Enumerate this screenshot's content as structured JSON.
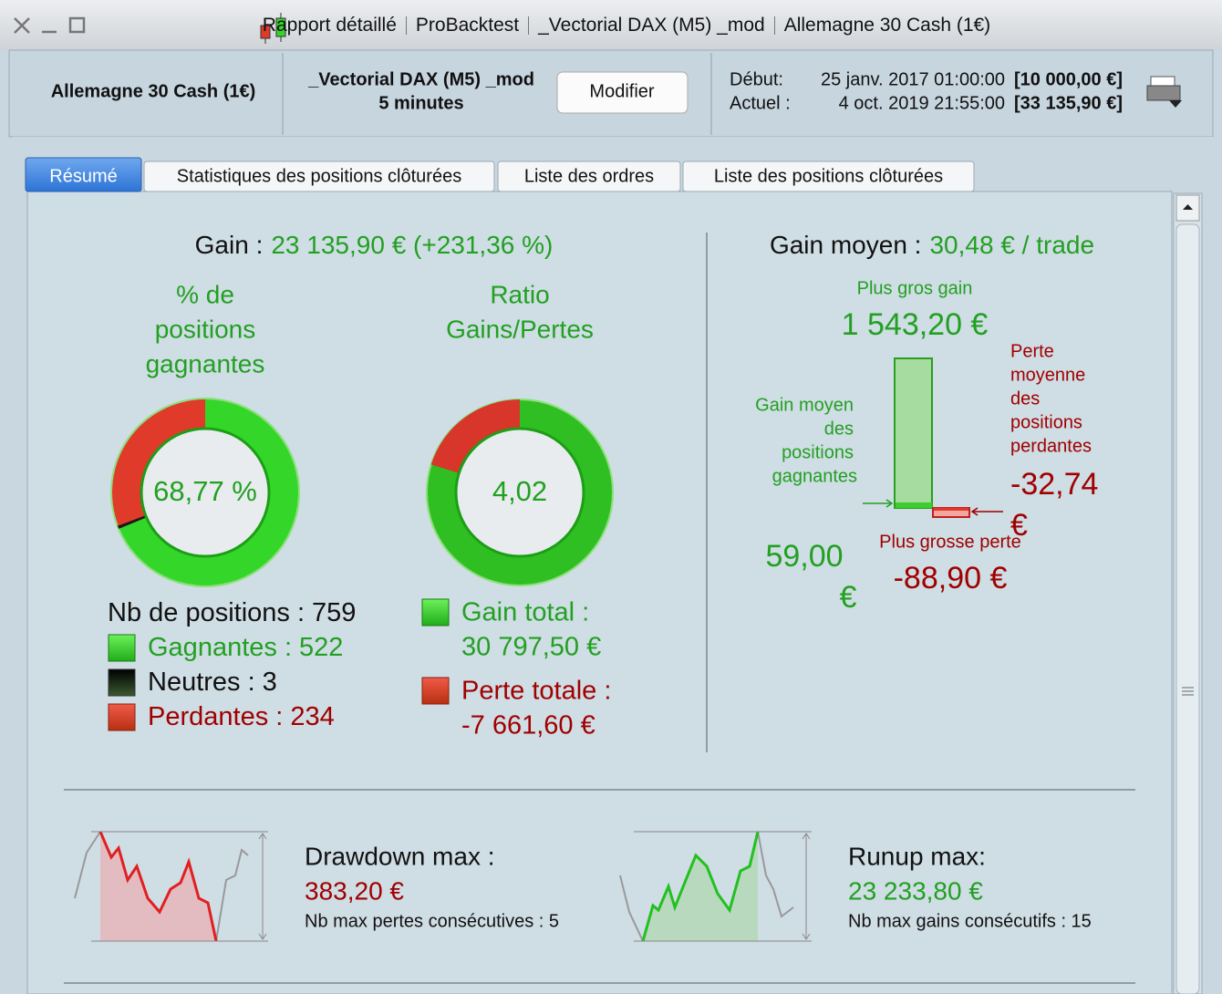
{
  "window": {
    "title_parts": [
      "Rapport détaillé",
      "ProBacktest",
      "_Vectorial DAX (M5) _mod",
      "Allemagne 30 Cash (1€)"
    ]
  },
  "header": {
    "instrument": "Allemagne 30 Cash (1€)",
    "strategy": "_Vectorial DAX (M5) _mod",
    "timeframe": "5 minutes",
    "button": "Modifier",
    "start_label": "Début:",
    "start_date": "25 janv. 2017 01:00:00",
    "start_capital": "[10 000,00 €]",
    "current_label": "Actuel :",
    "current_date": "4 oct. 2019 21:55:00",
    "current_capital": "[33 135,90 €]"
  },
  "tabs": [
    "Résumé",
    "Statistiques des positions clôturées",
    "Liste des ordres",
    "Liste des positions clôturées"
  ],
  "summary": {
    "gain_label": "Gain :",
    "gain_value": "23 135,90 € (+231,36 %)",
    "win_pct_title": [
      "% de",
      "positions",
      "gagnantes"
    ],
    "win_pct_value": "68,77 %",
    "ratio_title": [
      "Ratio",
      "Gains/Pertes"
    ],
    "ratio_value": "4,02",
    "positions": {
      "label": "Nb de positions :",
      "count": 759
    },
    "winners": {
      "label": "Gagnantes :",
      "count": 522,
      "color": "#34d629"
    },
    "neutral": {
      "label": "Neutres :",
      "count": 3,
      "color": "#1a1a1a"
    },
    "losers": {
      "label": "Perdantes :",
      "count": 234,
      "color": "#e03a2a"
    },
    "total_gain_label": "Gain total :",
    "total_gain_value": "30 797,50 €",
    "total_loss_label": "Perte totale :",
    "total_loss_value": "-7 661,60 €",
    "avg_gain_label": "Gain moyen :",
    "avg_gain_value": "30,48 € / trade",
    "biggest_gain_label": "Plus gros gain",
    "biggest_gain_value": "1 543,20 €",
    "avg_win_label": [
      "Gain moyen",
      "des",
      "positions",
      "gagnantes"
    ],
    "avg_win_value": [
      "59,00",
      "€"
    ],
    "avg_loss_label": [
      "Perte",
      "moyenne",
      "des",
      "positions",
      "perdantes"
    ],
    "avg_loss_value": [
      "-32,74",
      "€"
    ],
    "biggest_loss_label": "Plus grosse perte",
    "biggest_loss_value": "-88,90 €",
    "drawdown_label": "Drawdown max :",
    "drawdown_value": "383,20 €",
    "max_losses": "Nb max pertes consécutives : 5",
    "runup_label": "Runup max:",
    "runup_value": "23 233,80 €",
    "max_gains": "Nb max gains consécutifs : 15"
  }
}
